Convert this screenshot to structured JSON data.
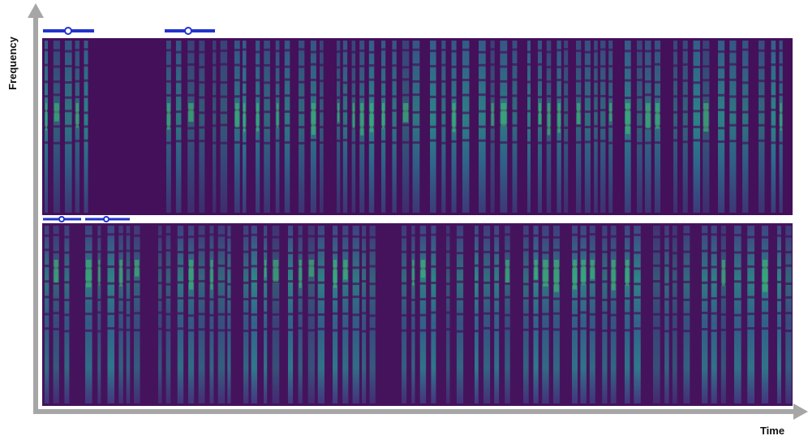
{
  "axes": {
    "y_label": "Frequency",
    "x_label": "Time"
  }
}
